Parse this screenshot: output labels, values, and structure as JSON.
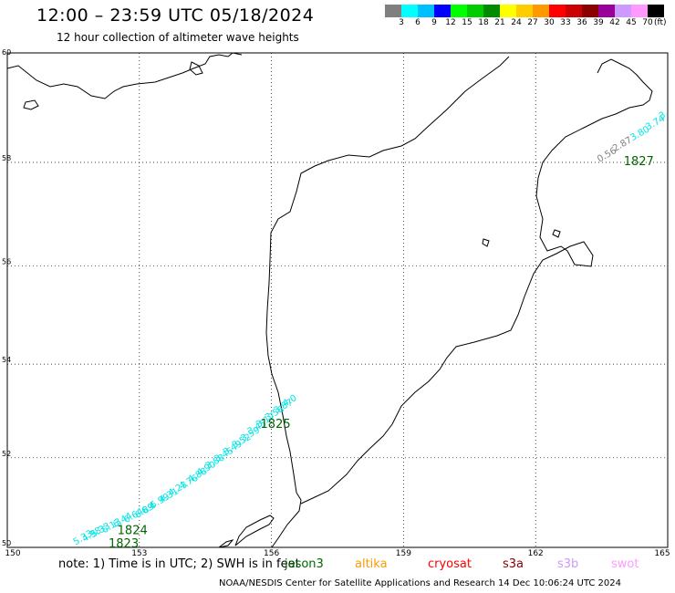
{
  "header": {
    "title": "12:00 – 23:59 UTC 05/18/2024",
    "subtitle": "12 hour collection of altimeter wave heights"
  },
  "colorbar": {
    "colors": [
      "#7f7f7f",
      "#00ffff",
      "#00bfff",
      "#0000ff",
      "#00ff00",
      "#00cc00",
      "#008b00",
      "#ffff00",
      "#ffcc00",
      "#ff9900",
      "#ff0000",
      "#cc0000",
      "#8b0000",
      "#990099",
      "#cc99ff",
      "#ff99ff",
      "#000000"
    ],
    "labels": [
      "3",
      "6",
      "9",
      "12",
      "15",
      "18",
      "21",
      "24",
      "27",
      "30",
      "33",
      "36",
      "39",
      "42",
      "45",
      "70"
    ],
    "unit": "(ft)"
  },
  "map": {
    "lon_range": [
      150,
      165
    ],
    "lat_range": [
      50,
      60
    ],
    "lon_ticks": [
      "150",
      "153",
      "156",
      "159",
      "162",
      "165"
    ],
    "lat_ticks": [
      "50",
      "52",
      "54",
      "56",
      "58",
      "60"
    ],
    "grid": "dotted"
  },
  "tracks": [
    {
      "id": "1823",
      "color": "#00e5e5",
      "values": [
        "5.33",
        "4.98",
        "5.33",
        "6.13",
        "6.44",
        "6.64",
        "6.89"
      ],
      "points": [
        [
          151.55,
          50.05
        ],
        [
          151.75,
          50.12
        ],
        [
          151.95,
          50.22
        ],
        [
          152.2,
          50.32
        ],
        [
          152.45,
          50.45
        ],
        [
          152.7,
          50.55
        ],
        [
          152.95,
          50.66
        ]
      ]
    },
    {
      "id": "1824",
      "color": "#00e5e5",
      "values": [
        "6.4",
        "5.99",
        "4.31",
        "4.23",
        "4.76",
        "4.88",
        "4.90",
        "3.88",
        "3.45",
        "3.49",
        "3.52",
        "3.59",
        "3.45",
        "3.17",
        "3.56",
        "3.87",
        "4.0"
      ],
      "points": [
        [
          153.1,
          50.75
        ],
        [
          153.3,
          50.88
        ],
        [
          153.5,
          51.0
        ],
        [
          153.7,
          51.15
        ],
        [
          153.95,
          51.3
        ],
        [
          154.15,
          51.45
        ],
        [
          154.35,
          51.6
        ],
        [
          154.55,
          51.75
        ],
        [
          154.75,
          51.9
        ],
        [
          154.95,
          52.05
        ],
        [
          155.15,
          52.2
        ],
        [
          155.35,
          52.35
        ],
        [
          155.5,
          52.5
        ],
        [
          155.7,
          52.65
        ],
        [
          155.9,
          52.8
        ],
        [
          156.1,
          52.95
        ],
        [
          156.3,
          53.1
        ]
      ]
    },
    {
      "id": "1827",
      "color": "#00e5e5",
      "values": [
        "0.56",
        "2.87",
        "3.80",
        "3.74",
        "3."
      ],
      "points": [
        [
          163.45,
          58.0
        ],
        [
          163.8,
          58.2
        ],
        [
          164.2,
          58.4
        ],
        [
          164.55,
          58.6
        ],
        [
          164.85,
          58.8
        ]
      ]
    }
  ],
  "track_labels": [
    {
      "text": "1823",
      "lon": 152.3,
      "lat": 50.0,
      "color": "#006600"
    },
    {
      "text": "1824",
      "lon": 152.5,
      "lat": 50.3,
      "color": "#006600"
    },
    {
      "text": "1825",
      "lon": 155.75,
      "lat": 52.65,
      "color": "#006600"
    },
    {
      "text": "1827",
      "lon": 164.0,
      "lat": 57.95,
      "color": "#006600"
    }
  ],
  "footer": {
    "note": "note:  1) Time is in UTC;  2) SWH is in feet",
    "satellites": [
      {
        "name": "jason3",
        "color": "#006600"
      },
      {
        "name": "altika",
        "color": "#ff9900"
      },
      {
        "name": "cryosat",
        "color": "#ff0000"
      },
      {
        "name": "s3a",
        "color": "#8b0000"
      },
      {
        "name": "s3b",
        "color": "#cc99ff"
      },
      {
        "name": "swot",
        "color": "#ff99ff"
      }
    ],
    "credit": "NOAA/NESDIS Center for Satellite Applications and Research    14 Dec 10:06:24 UTC 2024"
  }
}
